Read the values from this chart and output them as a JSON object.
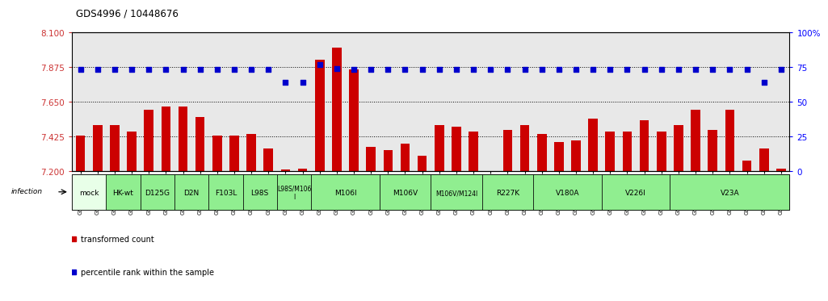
{
  "title": "GDS4996 / 10448676",
  "sample_ids": [
    "GSM1172653",
    "GSM1172654",
    "GSM1172655",
    "GSM1172656",
    "GSM1172657",
    "GSM1172658",
    "GSM1173022",
    "GSM1173023",
    "GSM1173024",
    "GSM1173007",
    "GSM1173008",
    "GSM1173009",
    "GSM1172659",
    "GSM1172660",
    "GSM1172661",
    "GSM1173013",
    "GSM1173014",
    "GSM1173015",
    "GSM1173016",
    "GSM1173017",
    "GSM1173018",
    "GSM1172665",
    "GSM1172666",
    "GSM1172667",
    "GSM1172662",
    "GSM1172663",
    "GSM1172664",
    "GSM1173019",
    "GSM1173020",
    "GSM1173021",
    "GSM1173031",
    "GSM1173032",
    "GSM1173033",
    "GSM1173025",
    "GSM1173026",
    "GSM1173027",
    "GSM1173028",
    "GSM1173029",
    "GSM1173030",
    "GSM1173010",
    "GSM1173011",
    "GSM1173012"
  ],
  "bar_values": [
    7.43,
    7.5,
    7.5,
    7.46,
    7.6,
    7.62,
    7.62,
    7.55,
    7.43,
    7.43,
    7.44,
    7.35,
    7.21,
    7.22,
    7.92,
    8.0,
    7.86,
    7.36,
    7.34,
    7.38,
    7.3,
    7.5,
    7.49,
    7.46,
    7.2,
    7.47,
    7.5,
    7.44,
    7.39,
    7.4,
    7.54,
    7.46,
    7.46,
    7.53,
    7.46,
    7.5,
    7.6,
    7.47,
    7.6,
    7.27,
    7.35,
    7.22
  ],
  "percentile_values": [
    73,
    73,
    73,
    73,
    73,
    73,
    73,
    73,
    73,
    73,
    73,
    73,
    64,
    64,
    77,
    74,
    73,
    73,
    73,
    73,
    73,
    73,
    73,
    73,
    73,
    73,
    73,
    73,
    73,
    73,
    73,
    73,
    73,
    73,
    73,
    73,
    73,
    73,
    73,
    73,
    64,
    73
  ],
  "groups": [
    {
      "label": "mock",
      "start": 0,
      "end": 2,
      "color": "#e8ffe8"
    },
    {
      "label": "HK-wt",
      "start": 2,
      "end": 4,
      "color": "#90ee90"
    },
    {
      "label": "D125G",
      "start": 4,
      "end": 6,
      "color": "#90ee90"
    },
    {
      "label": "D2N",
      "start": 6,
      "end": 8,
      "color": "#90ee90"
    },
    {
      "label": "F103L",
      "start": 8,
      "end": 10,
      "color": "#90ee90"
    },
    {
      "label": "L98S",
      "start": 10,
      "end": 12,
      "color": "#90ee90"
    },
    {
      "label": "L98S/M106\nI",
      "start": 12,
      "end": 14,
      "color": "#90ee90"
    },
    {
      "label": "M106I",
      "start": 14,
      "end": 18,
      "color": "#90ee90"
    },
    {
      "label": "M106V",
      "start": 18,
      "end": 21,
      "color": "#90ee90"
    },
    {
      "label": "M106V/M124I",
      "start": 21,
      "end": 24,
      "color": "#90ee90"
    },
    {
      "label": "R227K",
      "start": 24,
      "end": 27,
      "color": "#90ee90"
    },
    {
      "label": "V180A",
      "start": 27,
      "end": 31,
      "color": "#90ee90"
    },
    {
      "label": "V226I",
      "start": 31,
      "end": 35,
      "color": "#90ee90"
    },
    {
      "label": "V23A",
      "start": 35,
      "end": 42,
      "color": "#90ee90"
    }
  ],
  "ylim_left": [
    7.2,
    8.1
  ],
  "ylim_right": [
    0,
    100
  ],
  "yticks_left": [
    7.2,
    7.425,
    7.65,
    7.875,
    8.1
  ],
  "yticks_right": [
    0,
    25,
    50,
    75,
    100
  ],
  "hlines": [
    7.425,
    7.65,
    7.875
  ],
  "bar_color": "#cc0000",
  "dot_color": "#0000cc",
  "bar_width": 0.55,
  "chart_bg": "#e8e8e8",
  "legend_bar": "transformed count",
  "legend_dot": "percentile rank within the sample"
}
